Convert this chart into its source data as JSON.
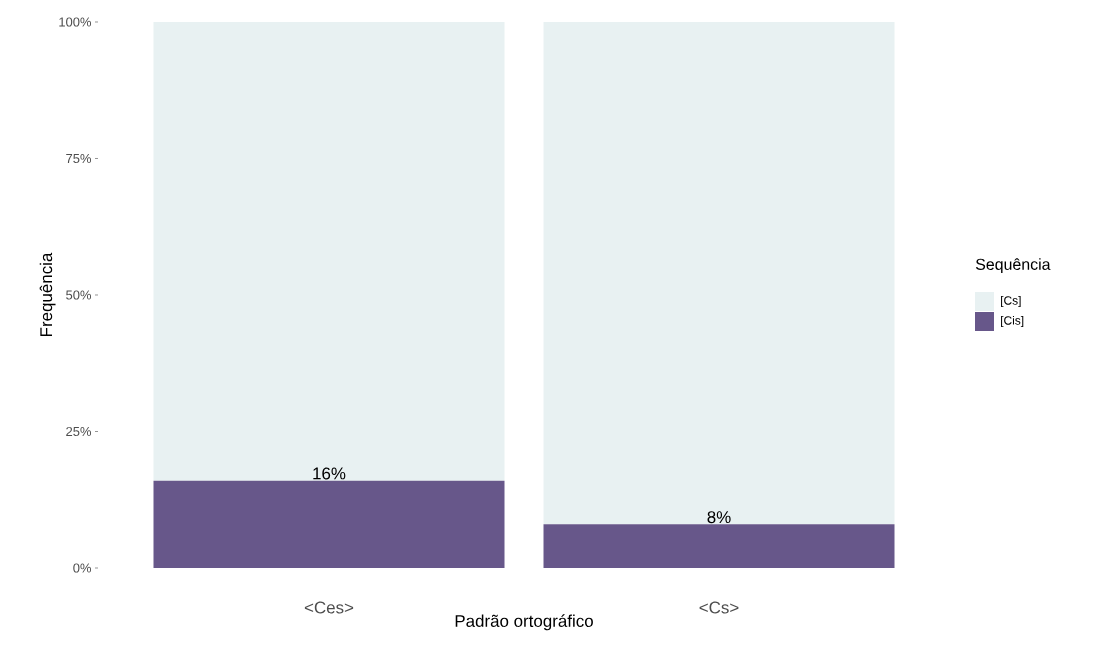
{
  "chart_data": {
    "type": "bar",
    "stacked": true,
    "xlabel": "Padrão ortográfico",
    "ylabel": "Frequência",
    "legend_title": "Sequência",
    "legend": "right",
    "grid": false,
    "categories": [
      "<Ces>",
      "<Cs>"
    ],
    "series": [
      {
        "name": "[Cis]",
        "color": "#67578a",
        "values": [
          16,
          8
        ],
        "value_labels": [
          "16%",
          "8%"
        ]
      },
      {
        "name": "[Cs]",
        "color": "#e8f1f2",
        "values": [
          84,
          92
        ]
      }
    ],
    "ylim": [
      0,
      100
    ],
    "yticks": [
      {
        "value": 0,
        "label": "0%"
      },
      {
        "value": 25,
        "label": "25%"
      },
      {
        "value": 50,
        "label": "50%"
      },
      {
        "value": 75,
        "label": "75%"
      },
      {
        "value": 100,
        "label": "100%"
      }
    ]
  }
}
